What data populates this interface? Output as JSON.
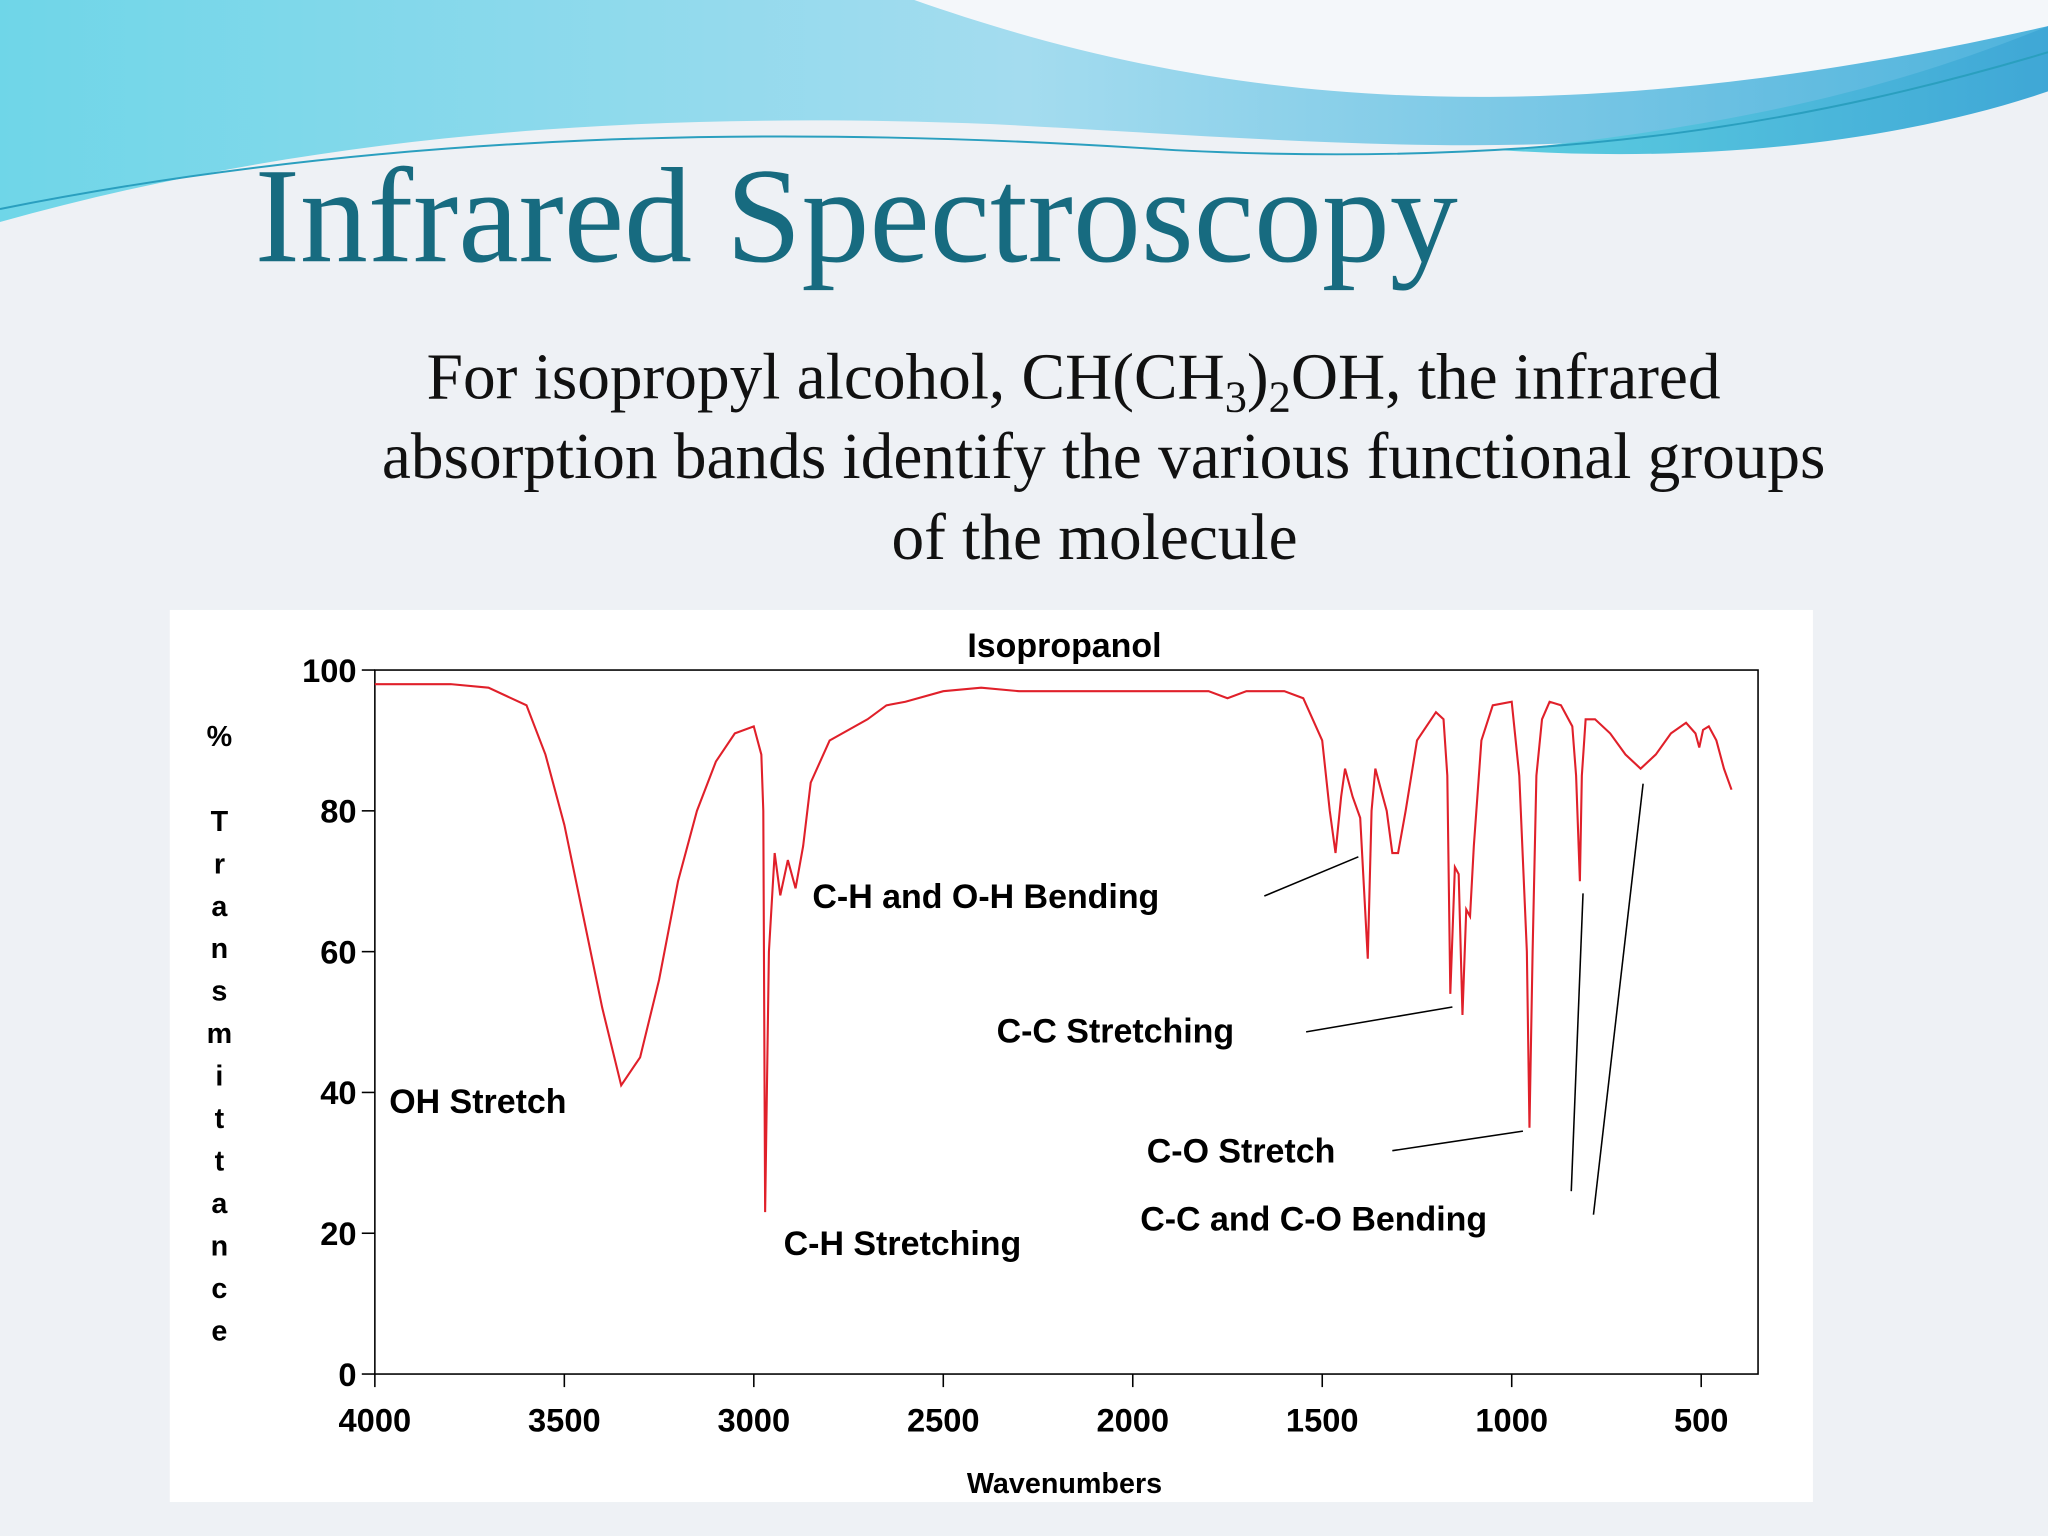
{
  "slide": {
    "title": "Infrared Spectroscopy",
    "subtitle_lines": [
      [
        "For isopropyl alcohol, CH(CH",
        "3",
        ")",
        "2",
        "OH, the infrared"
      ],
      [
        "absorption bands identify the various functional groups"
      ],
      [
        "of the molecule"
      ]
    ]
  },
  "chart_data": {
    "type": "line",
    "title": "Isopropanol",
    "x_label": "Wavenumbers",
    "y_label": "% Transmittance",
    "color": "#e0202a",
    "xlim": [
      4000,
      350
    ],
    "ylim": [
      0,
      100
    ],
    "xticks": [
      4000,
      3500,
      3000,
      2500,
      2000,
      1500,
      1000,
      500
    ],
    "yticks": [
      0,
      20,
      40,
      60,
      80,
      100
    ],
    "x": [
      4000,
      3800,
      3700,
      3600,
      3550,
      3500,
      3450,
      3400,
      3350,
      3300,
      3250,
      3200,
      3150,
      3100,
      3050,
      3000,
      2980,
      2975,
      2970,
      2960,
      2945,
      2930,
      2910,
      2890,
      2870,
      2850,
      2800,
      2700,
      2650,
      2600,
      2500,
      2400,
      2300,
      2200,
      2000,
      1800,
      1750,
      1700,
      1600,
      1550,
      1500,
      1480,
      1465,
      1450,
      1440,
      1420,
      1400,
      1380,
      1370,
      1360,
      1345,
      1330,
      1315,
      1300,
      1280,
      1250,
      1200,
      1180,
      1170,
      1162,
      1150,
      1140,
      1130,
      1120,
      1110,
      1100,
      1080,
      1050,
      1000,
      980,
      960,
      953,
      945,
      935,
      920,
      900,
      870,
      840,
      830,
      820,
      815,
      805,
      780,
      740,
      700,
      660,
      620,
      580,
      540,
      515,
      505,
      495,
      480,
      460,
      440,
      420
    ],
    "values": [
      98,
      98,
      97.5,
      95,
      88,
      78,
      65,
      52,
      41,
      45,
      56,
      70,
      80,
      87,
      91,
      92,
      88,
      80,
      23,
      60,
      74,
      68,
      73,
      69,
      75,
      84,
      90,
      93,
      95,
      95.5,
      97,
      97.5,
      97,
      97,
      97,
      97,
      96,
      97,
      97,
      96,
      90,
      80,
      74,
      82,
      86,
      82,
      79,
      59,
      80,
      86,
      83,
      80,
      74,
      74,
      80,
      90,
      94,
      93,
      85,
      54,
      72,
      71,
      51,
      66,
      65,
      75,
      90,
      95,
      95.5,
      85,
      60,
      35,
      60,
      85,
      93,
      95.5,
      95,
      92,
      85,
      70,
      85,
      93,
      93,
      91,
      88,
      86,
      88,
      91,
      92.5,
      91,
      89,
      91.5,
      92,
      90,
      86,
      83
    ],
    "annotations": [
      "OH Stretch",
      "C-H Stretching",
      "C-H and O-H Bending",
      "C-C Stretching",
      "C-O Stretch",
      "C-C and C-O Bending"
    ]
  }
}
